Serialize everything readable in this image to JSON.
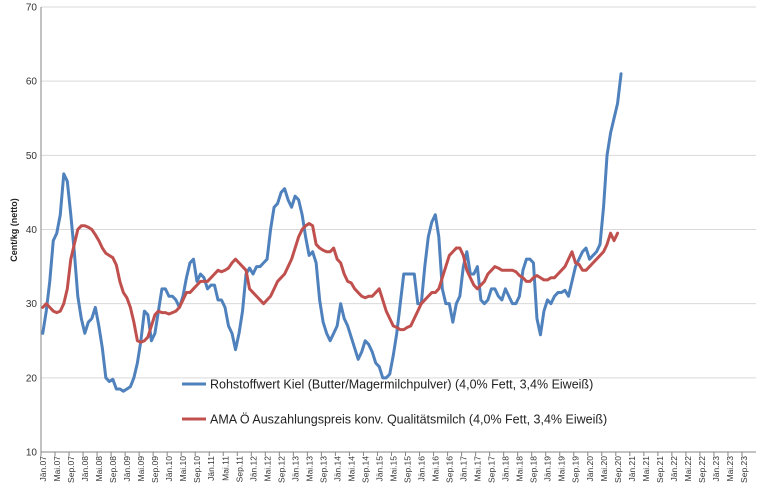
{
  "chart_data": {
    "type": "line",
    "ylabel": "Cent/kg (netto)",
    "ylim": [
      10,
      70
    ],
    "yticks": [
      10,
      20,
      30,
      40,
      50,
      60,
      70
    ],
    "grid": "horizontal",
    "legend_position": "bottom-center",
    "x_labels": [
      "Jän.07",
      "Mai.07",
      "Sep.07",
      "Jän.08",
      "Mai.08",
      "Sep.08",
      "Jän.09",
      "Mai.09",
      "Sep.09",
      "Jän.10",
      "Mai.10",
      "Sep.10",
      "Jän.11",
      "Mai.11",
      "Sep.11",
      "Jän.12",
      "Mai.12",
      "Sep.12",
      "Jän.13",
      "Mai.13",
      "Sep.13",
      "Jän.14",
      "Mai.14",
      "Sep.14",
      "Jän.15",
      "Mai.15",
      "Sep.15",
      "Jän.16",
      "Mai.16",
      "Sep.16",
      "Jän.17",
      "Mai.17",
      "Sep.17",
      "Jän.18",
      "Mai.18",
      "Sep.18",
      "Jän.19",
      "Mai.19",
      "Sep.19",
      "Jän.20",
      "Mai.20",
      "Sep.20",
      "Jän.21",
      "Mai.21",
      "Sep.21",
      "Jän.22",
      "Mai.22",
      "Sep.22",
      "Jän.23",
      "Mai.23",
      "Sep.23"
    ],
    "series": [
      {
        "name": "Rohstoffwert Kiel (Butter/Magermilchpulver) (4,0% Fett, 3,4% Eiweiß)",
        "color": "#4f81bd",
        "values": [
          26,
          29,
          33,
          38.5,
          39.5,
          42,
          47.5,
          46.5,
          42,
          37,
          31,
          28,
          26,
          27.5,
          28,
          29.5,
          27,
          24,
          20,
          19.5,
          19.8,
          18.5,
          18.5,
          18.2,
          18.5,
          18.8,
          20,
          22,
          25,
          29,
          28.5,
          25,
          26,
          29,
          32,
          32,
          31,
          31,
          30.5,
          29.5,
          31,
          33.5,
          35.5,
          36,
          33,
          34,
          33.5,
          32,
          32.5,
          32.5,
          30.5,
          30.5,
          29.5,
          27,
          26,
          23.8,
          26,
          29,
          34,
          34.8,
          34,
          35,
          35,
          35.5,
          36,
          40,
          43,
          43.5,
          45,
          45.5,
          44,
          43,
          44.5,
          44,
          42,
          39,
          36.5,
          37,
          35.5,
          30.5,
          27.5,
          26,
          25,
          26,
          27,
          30,
          28,
          27,
          25.5,
          24,
          22.5,
          23.5,
          25,
          24.5,
          23.5,
          22,
          21.5,
          20,
          20,
          20.5,
          23,
          26,
          30,
          34,
          34,
          34,
          34,
          30,
          30,
          35,
          39,
          41,
          42,
          39,
          32,
          30,
          30,
          27.5,
          30,
          31,
          35,
          37,
          34,
          34,
          35,
          30.5,
          30,
          30.5,
          32,
          32,
          31,
          30.5,
          32,
          31,
          30,
          30,
          31,
          34.5,
          36,
          36,
          35.5,
          28,
          25.8,
          29,
          30.5,
          30,
          31,
          31.5,
          31.5,
          31.8,
          31,
          33,
          35,
          36,
          37,
          37.5,
          36,
          36.5,
          37,
          38,
          43,
          50,
          53,
          55,
          57,
          61
        ]
      },
      {
        "name": "AMA Ö Auszahlungspreis konv. Qualitätsmilch (4,0% Fett, 3,4% Eiweiß)",
        "color": "#c0504d",
        "values": [
          29.5,
          30,
          29.5,
          29,
          28.8,
          29,
          30,
          32,
          36,
          38,
          40,
          40.5,
          40.5,
          40.3,
          40,
          39.3,
          38.5,
          37.5,
          36.8,
          36.5,
          36.2,
          35.2,
          33,
          31.5,
          30.8,
          29.5,
          27.5,
          25,
          24.8,
          25,
          25.5,
          27,
          28.5,
          29,
          28.8,
          28.8,
          28.6,
          28.8,
          29,
          29.5,
          30.5,
          31.5,
          31.5,
          32,
          32.5,
          33,
          33,
          33,
          33.5,
          34,
          34.5,
          34.3,
          34.5,
          34.8,
          35.5,
          36,
          35.5,
          35,
          34.5,
          32,
          31.5,
          31,
          30.5,
          30,
          30.5,
          31,
          32,
          33,
          33.5,
          34,
          35,
          36,
          37.5,
          39,
          40,
          40.5,
          40.8,
          40.5,
          38,
          37.5,
          37.2,
          37,
          37,
          37.5,
          36,
          35.5,
          34,
          33,
          32.8,
          32,
          31.5,
          31,
          30.8,
          31,
          31,
          31.5,
          32,
          30.5,
          29,
          28,
          27,
          26.8,
          26.5,
          26.5,
          26.8,
          27,
          28,
          29,
          30,
          30.5,
          31,
          31.5,
          31.5,
          32,
          33.5,
          35,
          36.5,
          37,
          37.5,
          37.5,
          36.5,
          34.5,
          33.5,
          32.5,
          32,
          32.5,
          33,
          34,
          34.5,
          35,
          34.8,
          34.5,
          34.5,
          34.5,
          34.5,
          34.3,
          33.8,
          33.5,
          33,
          33,
          33.5,
          33.8,
          33.5,
          33.2,
          33.2,
          33.5,
          33.5,
          34,
          34.5,
          35,
          36,
          37,
          35.5,
          35.3,
          34.5,
          34.5,
          35,
          35.5,
          36,
          36.5,
          37,
          38,
          39.5,
          38.5,
          39.5
        ]
      }
    ]
  }
}
